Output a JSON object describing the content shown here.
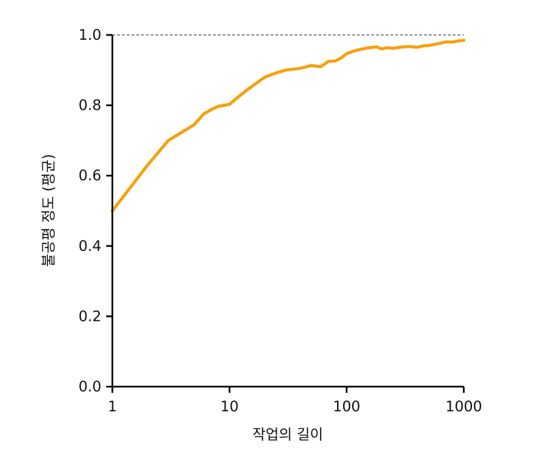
{
  "chart_data": {
    "type": "line",
    "title": "",
    "xlabel": "작업의 길이",
    "ylabel": "불공평 정도 (평균)",
    "x_scale": "log",
    "xlim": [
      1,
      1000
    ],
    "ylim": [
      0.0,
      1.0
    ],
    "x_ticks": [
      1,
      10,
      100,
      1000
    ],
    "x_tick_labels": [
      "1",
      "10",
      "100",
      "1000"
    ],
    "y_ticks": [
      0.0,
      0.2,
      0.4,
      0.6,
      0.8,
      1.0
    ],
    "y_tick_labels": [
      "0.0",
      "0.2",
      "0.4",
      "0.6",
      "0.8",
      "1.0"
    ],
    "grid": false,
    "reference_line": {
      "y": 1.0,
      "style": "dashed"
    },
    "series": [
      {
        "color": "#F5A10F",
        "x": [
          1,
          2,
          3,
          4,
          5,
          6,
          7,
          8,
          9,
          10,
          12,
          15,
          20,
          25,
          30,
          40,
          50,
          60,
          70,
          80,
          90,
          100,
          120,
          150,
          180,
          200,
          220,
          250,
          300,
          350,
          400,
          450,
          500,
          600,
          700,
          800,
          900,
          1000
        ],
        "y": [
          0.5,
          0.63,
          0.7,
          0.725,
          0.745,
          0.775,
          0.788,
          0.797,
          0.8,
          0.803,
          0.825,
          0.85,
          0.88,
          0.892,
          0.9,
          0.905,
          0.913,
          0.91,
          0.925,
          0.926,
          0.935,
          0.947,
          0.956,
          0.963,
          0.966,
          0.96,
          0.964,
          0.962,
          0.966,
          0.967,
          0.965,
          0.969,
          0.97,
          0.975,
          0.98,
          0.98,
          0.983,
          0.985
        ]
      }
    ]
  }
}
